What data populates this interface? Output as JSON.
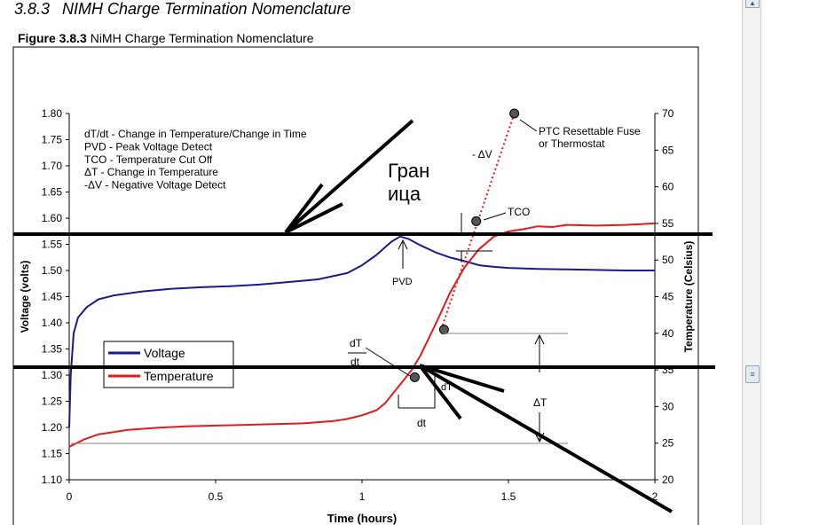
{
  "section": {
    "number": "3.8.3",
    "title": "NIMH Charge Termination Nomenclature"
  },
  "figure": {
    "label": "Figure 3.8.3",
    "title": "NiMH Charge Termination Nomenclature"
  },
  "chart_data": {
    "type": "line",
    "xlabel": "Time (hours)",
    "ylabel": "Voltage (volts)",
    "y2label": "Temperature (Celsius)",
    "xlim": [
      0,
      2
    ],
    "ylim": [
      1.1,
      1.8
    ],
    "y2lim": [
      20,
      70
    ],
    "x_ticks": [
      "0",
      "0.5",
      "1",
      "1.5",
      "2"
    ],
    "y_ticks": [
      "1.10",
      "1.15",
      "1.20",
      "1.25",
      "1.30",
      "1.35",
      "1.40",
      "1.45",
      "1.50",
      "1.55",
      "1.60",
      "1.65",
      "1.70",
      "1.75",
      "1.80"
    ],
    "y2_ticks": [
      "20",
      "25",
      "30",
      "35",
      "40",
      "45",
      "50",
      "55",
      "60",
      "65",
      "70"
    ],
    "grid": false,
    "legend_position": "left-middle",
    "series": [
      {
        "name": "Voltage",
        "axis": "left",
        "color": "#1a1a8c",
        "x": [
          0,
          0.005,
          0.015,
          0.03,
          0.06,
          0.1,
          0.15,
          0.25,
          0.35,
          0.45,
          0.55,
          0.65,
          0.75,
          0.85,
          0.95,
          1.0,
          1.05,
          1.1,
          1.13,
          1.16,
          1.2,
          1.25,
          1.3,
          1.35,
          1.4,
          1.45,
          1.5,
          1.6,
          1.7,
          1.8,
          1.9,
          2.0
        ],
        "values": [
          1.2,
          1.3,
          1.38,
          1.41,
          1.43,
          1.445,
          1.452,
          1.46,
          1.465,
          1.468,
          1.47,
          1.473,
          1.478,
          1.483,
          1.495,
          1.51,
          1.53,
          1.555,
          1.565,
          1.56,
          1.548,
          1.535,
          1.525,
          1.518,
          1.51,
          1.507,
          1.505,
          1.503,
          1.502,
          1.501,
          1.5,
          1.5
        ]
      },
      {
        "name": "Temperature",
        "axis": "right",
        "color": "#e31a1c",
        "x": [
          0,
          0.05,
          0.1,
          0.2,
          0.3,
          0.4,
          0.5,
          0.6,
          0.7,
          0.8,
          0.9,
          0.95,
          1.0,
          1.05,
          1.08,
          1.11,
          1.14,
          1.17,
          1.2,
          1.23,
          1.26,
          1.3,
          1.35,
          1.4,
          1.45,
          1.5,
          1.55,
          1.6,
          1.65,
          1.7,
          1.8,
          1.9,
          2.0
        ],
        "values": [
          24.5,
          25.5,
          26.2,
          26.8,
          27.1,
          27.3,
          27.4,
          27.5,
          27.6,
          27.7,
          28.0,
          28.3,
          28.8,
          29.5,
          30.5,
          32.0,
          33.5,
          35.0,
          37.0,
          39.5,
          42.0,
          45.5,
          49.0,
          51.5,
          53.2,
          53.9,
          54.2,
          54.6,
          54.5,
          54.8,
          54.7,
          54.8,
          55.0
        ]
      },
      {
        "name": "",
        "axis": "right",
        "color": "#e31a1c",
        "style": "dotted",
        "x": [
          1.27,
          1.52
        ],
        "values": [
          40.5,
          70.0
        ]
      }
    ],
    "points": [
      {
        "x": 1.18,
        "y2": 34.0
      },
      {
        "x": 1.28,
        "y2": 40.5
      },
      {
        "x": 1.39,
        "y2": 55.3
      },
      {
        "x": 1.52,
        "y2": 70.0
      }
    ],
    "definitions": [
      "dT/dt - Change in Temperature/Change in Time",
      "PVD - Peak Voltage Detect",
      "TCO - Temperature Cut Off",
      "ΔT - Change in Temperature",
      "-ΔV - Negative Voltage Detect"
    ],
    "annotations": {
      "ptc": [
        "PTC Resettable Fuse",
        "or Thermostat"
      ],
      "neg_dv": "- ΔV",
      "tco": "TCO",
      "pvd": "PVD",
      "dt_over_dt_top": "dT",
      "dt_over_dt_bottom": "dt",
      "dt_bottom": "dt",
      "delta_t": "ΔT",
      "dt_partial": "dT",
      "cyrillic_line1": "Гран",
      "cyrillic_line2": "ица"
    }
  }
}
